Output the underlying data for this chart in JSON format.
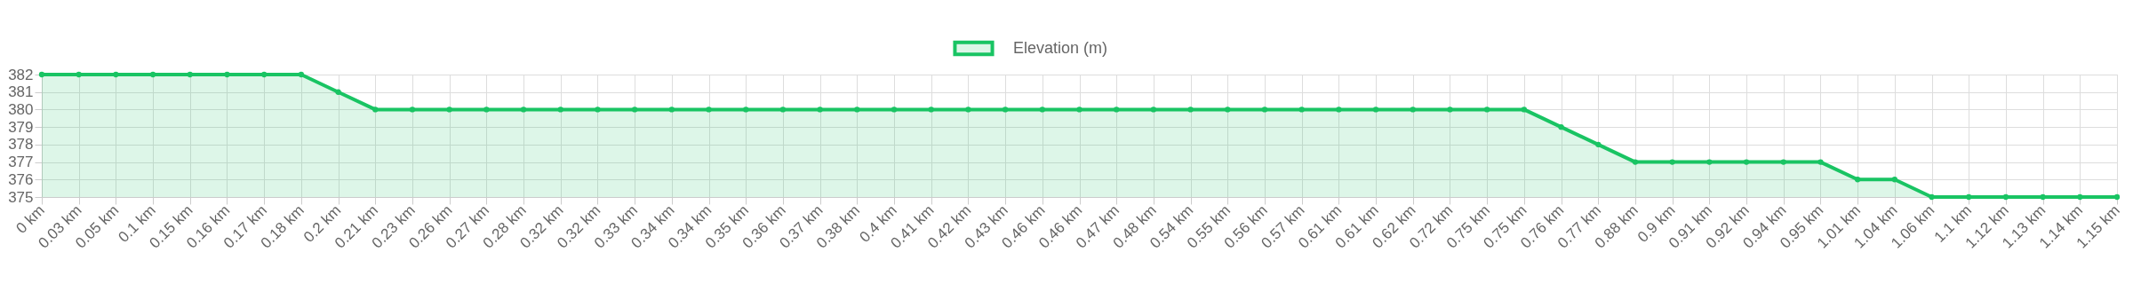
{
  "chart_data": {
    "type": "area",
    "categories": [
      "0 km",
      "0.03 km",
      "0.05 km",
      "0.1 km",
      "0.15 km",
      "0.16 km",
      "0.17 km",
      "0.18 km",
      "0.2 km",
      "0.21 km",
      "0.23 km",
      "0.26 km",
      "0.27 km",
      "0.28 km",
      "0.32 km",
      "0.32 km",
      "0.33 km",
      "0.34 km",
      "0.34 km",
      "0.35 km",
      "0.36 km",
      "0.37 km",
      "0.38 km",
      "0.4 km",
      "0.41 km",
      "0.42 km",
      "0.43 km",
      "0.46 km",
      "0.46 km",
      "0.47 km",
      "0.48 km",
      "0.54 km",
      "0.55 km",
      "0.56 km",
      "0.57 km",
      "0.61 km",
      "0.61 km",
      "0.62 km",
      "0.72 km",
      "0.75 km",
      "0.75 km",
      "0.76 km",
      "0.77 km",
      "0.88 km",
      "0.9 km",
      "0.91 km",
      "0.92 km",
      "0.94 km",
      "0.95 km",
      "1.01 km",
      "1.04 km",
      "1.06 km",
      "1.1 km",
      "1.12 km",
      "1.13 km",
      "1.14 km",
      "1.15 km"
    ],
    "series": [
      {
        "name": "Elevation (m)",
        "color": "#19c463",
        "values": [
          382,
          382,
          382,
          382,
          382,
          382,
          382,
          382,
          381,
          380,
          380,
          380,
          380,
          380,
          380,
          380,
          380,
          380,
          380,
          380,
          380,
          380,
          380,
          380,
          380,
          380,
          380,
          380,
          380,
          380,
          380,
          380,
          380,
          380,
          380,
          380,
          380,
          380,
          380,
          380,
          380,
          379,
          378,
          377,
          377,
          377,
          377,
          377,
          377,
          376,
          376,
          375,
          375,
          375,
          375,
          375,
          375
        ]
      }
    ],
    "ylim": [
      375,
      382
    ],
    "yticks": [
      375,
      376,
      377,
      378,
      379,
      380,
      381,
      382
    ],
    "grid": true,
    "legend": "top",
    "marker": "circle"
  }
}
